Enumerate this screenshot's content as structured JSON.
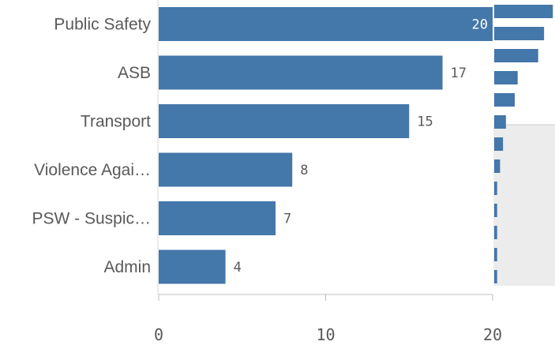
{
  "chart_data": {
    "type": "bar",
    "orientation": "horizontal",
    "categories": [
      "Public Safety",
      "ASB",
      "Transport",
      "Violence Agai…",
      "PSW - Suspic…",
      "Admin"
    ],
    "values": [
      20,
      17,
      15,
      8,
      7,
      4
    ],
    "x_ticks": [
      "0",
      "10",
      "20"
    ],
    "xlim": [
      0,
      20
    ],
    "grid": false,
    "bar_color": "#4477aa",
    "minimap": {
      "present": true,
      "position": "right",
      "bar_color": "#4477aa",
      "background": "#ececec",
      "values": [
        20,
        17,
        15,
        8,
        7,
        4,
        3,
        2,
        1,
        1,
        1,
        1,
        1
      ]
    }
  }
}
